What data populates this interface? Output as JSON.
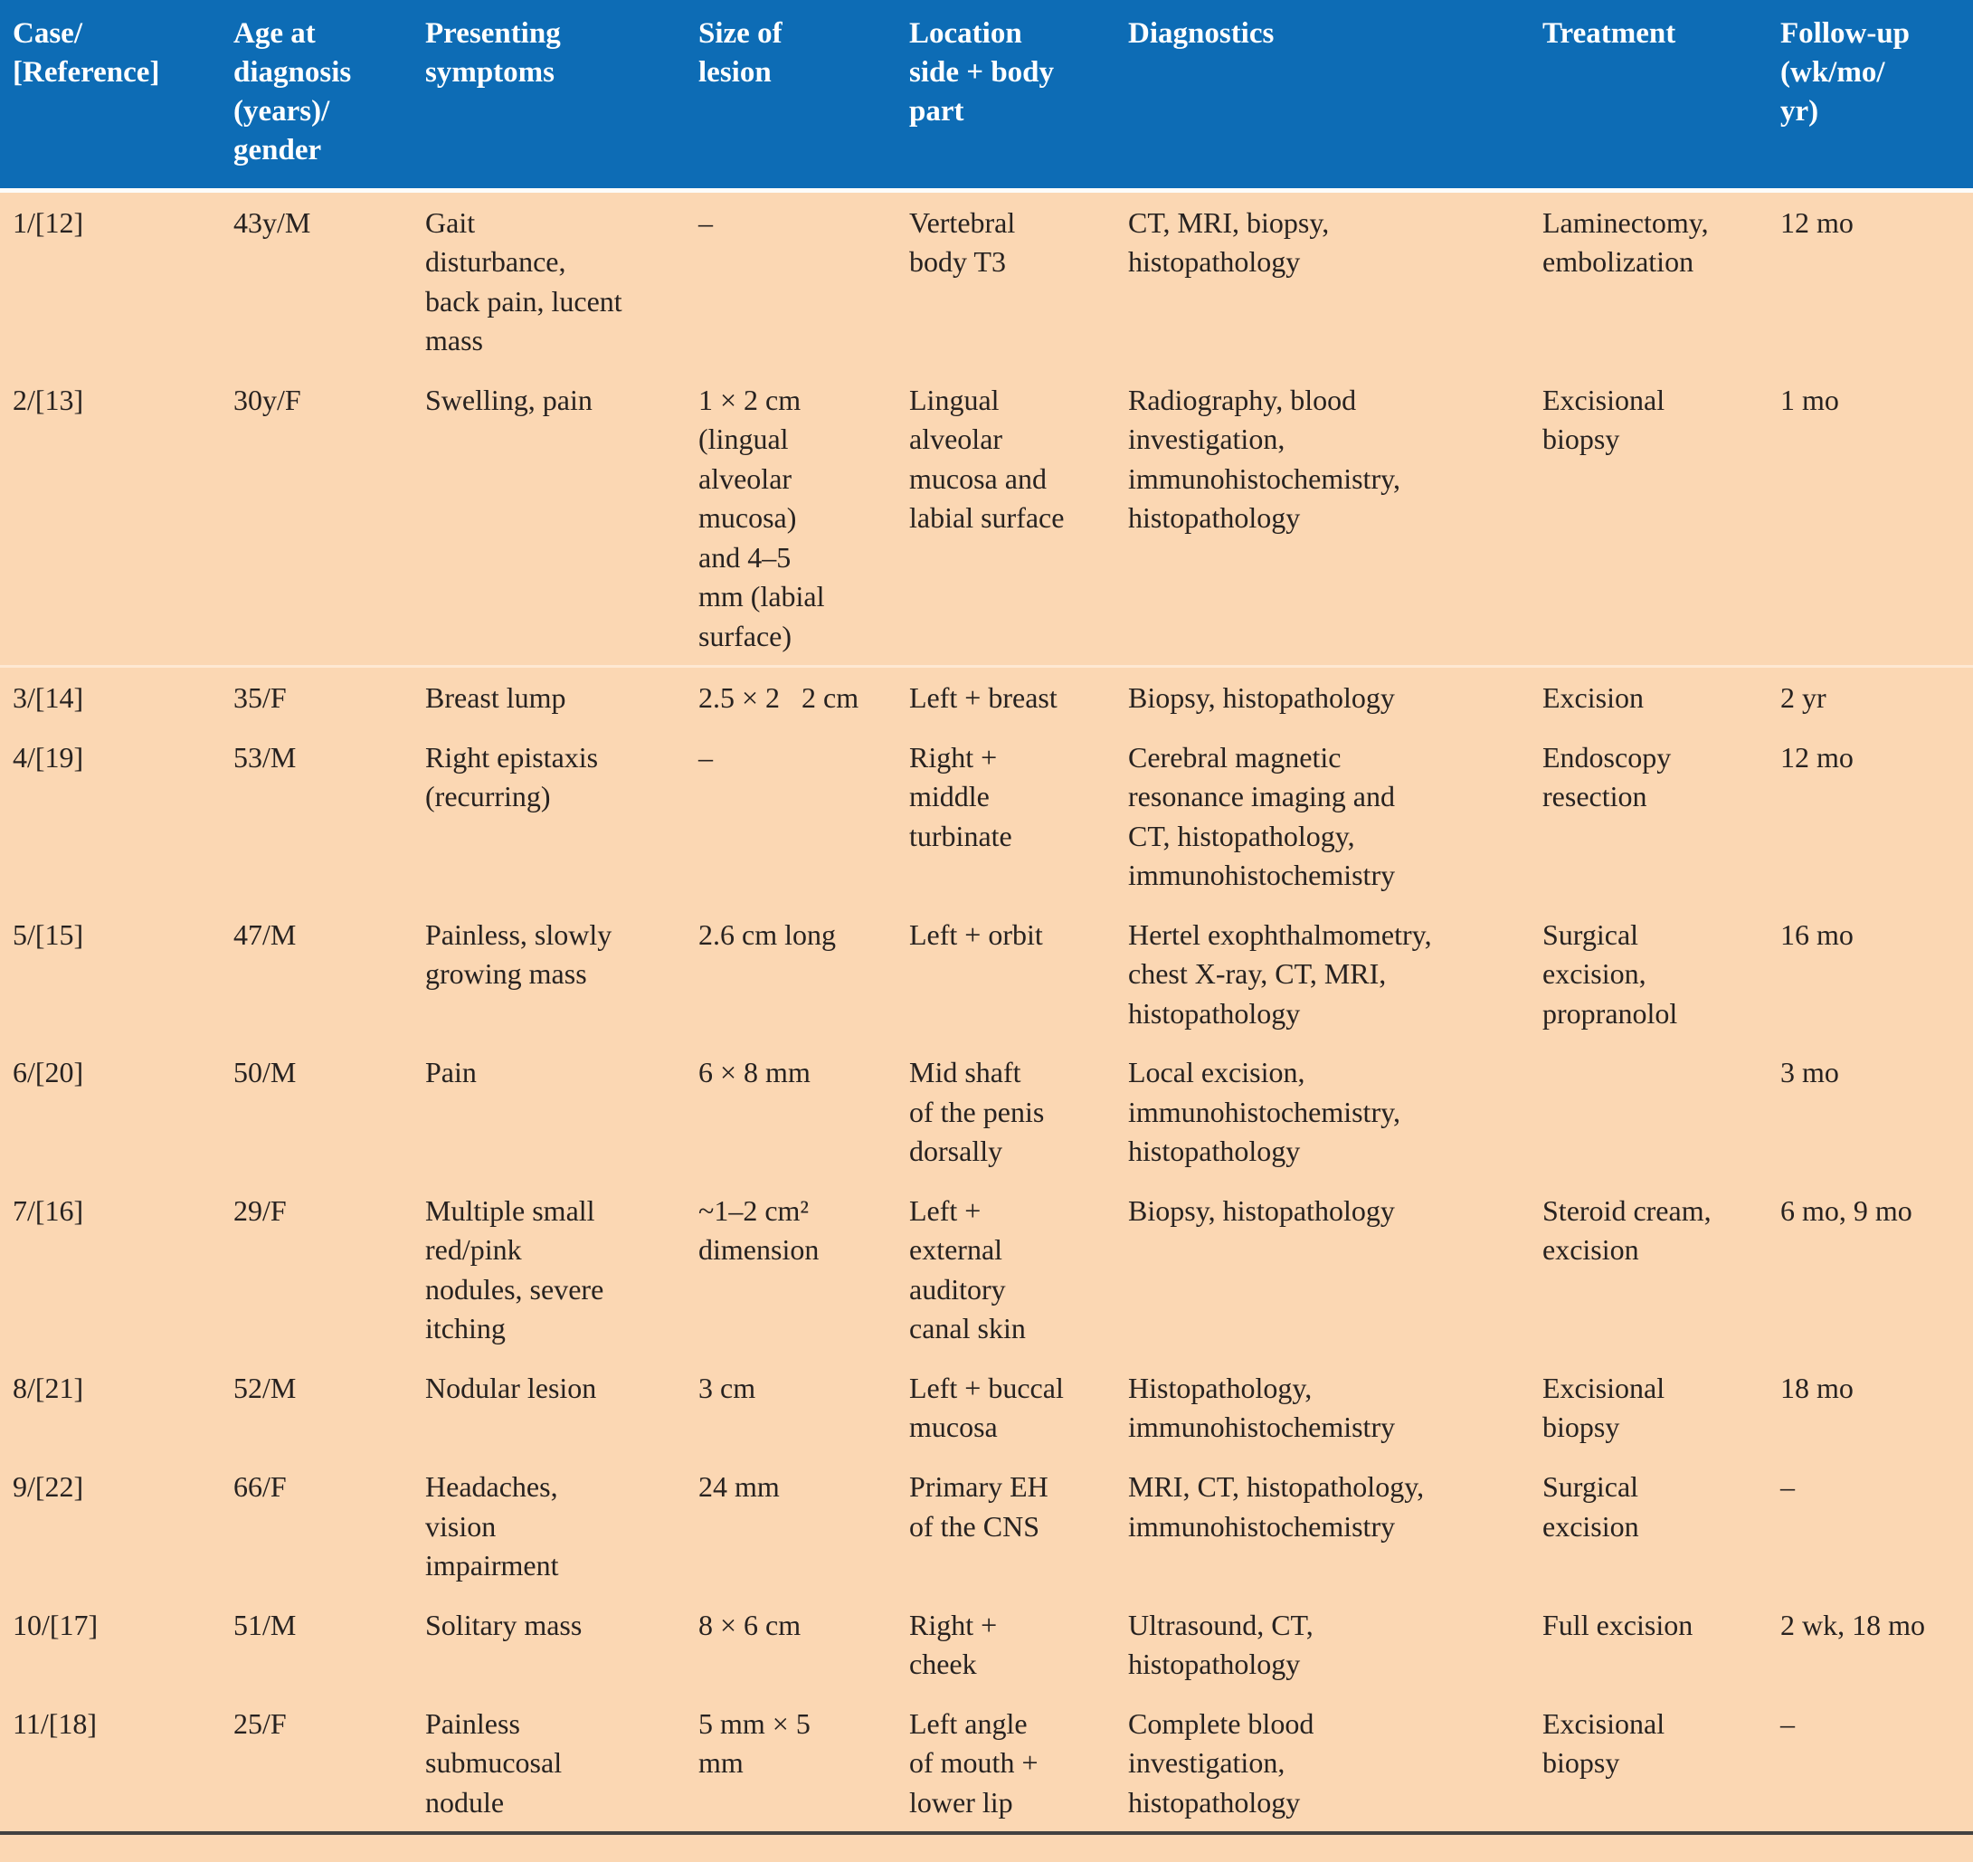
{
  "colors": {
    "header_bg": "#0d6cb5",
    "header_text": "#ffffff",
    "body_bg": "#fbd7b3",
    "body_text": "#272220",
    "bottom_rule": "#414141",
    "row_divider": "#fee8d3"
  },
  "table": {
    "headers": [
      "Case/\n[Reference]",
      "Age at\ndiagnosis\n(years)/\ngender",
      "Presenting\nsymptoms",
      "Size of\nlesion",
      "Location\nside + body\npart",
      "Diagnostics",
      "Treatment",
      "Follow-up\n(wk/mo/\nyr)"
    ],
    "rows": [
      {
        "case": "1/[12]",
        "age": "43y/M",
        "symptoms": "Gait\ndisturbance,\nback pain, lucent\nmass",
        "size": "–",
        "location": "Vertebral\nbody T3",
        "diagnostics": "CT, MRI, biopsy,\nhistopathology",
        "treatment": "Laminectomy,\nembolization",
        "followup": "12 mo"
      },
      {
        "case": "2/[13]",
        "age": "30y/F",
        "symptoms": "Swelling, pain",
        "size": "1 × 2 cm\n(lingual\nalveolar\nmucosa)\nand 4–5\nmm (labial\nsurface)",
        "location": "Lingual\nalveolar\nmucosa and\nlabial surface",
        "diagnostics": "Radiography, blood\ninvestigation,\nimmunohistochemistry,\nhistopathology",
        "treatment": "Excisional\nbiopsy",
        "followup": "1 mo"
      },
      {
        "case": "3/[14]",
        "age": "35/F",
        "symptoms": "Breast lump",
        "size": "2.5 × 2  2 cm",
        "location": "Left + breast",
        "diagnostics": "Biopsy, histopathology",
        "treatment": "Excision",
        "followup": "2 yr"
      },
      {
        "case": "4/[19]",
        "age": "53/M",
        "symptoms": "Right epistaxis\n(recurring)",
        "size": "–",
        "location": "Right +\nmiddle\nturbinate",
        "diagnostics": "Cerebral magnetic\nresonance imaging and\nCT, histopathology,\nimmunohistochemistry",
        "treatment": "Endoscopy\nresection",
        "followup": "12 mo"
      },
      {
        "case": "5/[15]",
        "age": "47/M",
        "symptoms": "Painless, slowly\ngrowing mass",
        "size": "2.6 cm long",
        "location": "Left + orbit",
        "diagnostics": "Hertel exophthalmometry,\nchest X-ray, CT, MRI,\nhistopathology",
        "treatment": "Surgical\nexcision,\npropranolol",
        "followup": "16 mo"
      },
      {
        "case": "6/[20]",
        "age": "50/M",
        "symptoms": "Pain",
        "size": "6 × 8 mm",
        "location": "Mid shaft\nof the penis\ndorsally",
        "diagnostics": "Local excision,\nimmunohistochemistry,\nhistopathology",
        "treatment": "",
        "followup": "3 mo"
      },
      {
        "case": "7/[16]",
        "age": "29/F",
        "symptoms": "Multiple small\nred/pink\nnodules, severe\nitching",
        "size": "~1–2 cm²\ndimension",
        "location": "Left +\nexternal\nauditory\ncanal skin",
        "diagnostics": "Biopsy, histopathology",
        "treatment": "Steroid cream,\nexcision",
        "followup": "6 mo, 9 mo"
      },
      {
        "case": "8/[21]",
        "age": "52/M",
        "symptoms": "Nodular lesion",
        "size": "3 cm",
        "location": "Left + buccal\nmucosa",
        "diagnostics": "Histopathology,\nimmunohistochemistry",
        "treatment": "Excisional\nbiopsy",
        "followup": "18 mo"
      },
      {
        "case": "9/[22]",
        "age": "66/F",
        "symptoms": "Headaches,\nvision\nimpairment",
        "size": "24 mm",
        "location": "Primary EH\nof the CNS",
        "diagnostics": "MRI, CT, histopathology,\nimmunohistochemistry",
        "treatment": "Surgical\nexcision",
        "followup": "–"
      },
      {
        "case": "10/[17]",
        "age": "51/M",
        "symptoms": "Solitary mass",
        "size": "8 × 6 cm",
        "location": "Right +\ncheek",
        "diagnostics": "Ultrasound, CT,\nhistopathology",
        "treatment": "Full excision",
        "followup": "2 wk, 18 mo"
      },
      {
        "case": "11/[18]",
        "age": "25/F",
        "symptoms": "Painless\nsubmucosal\nnodule",
        "size": "5 mm × 5\nmm",
        "location": "Left angle\nof mouth +\nlower lip",
        "diagnostics": "Complete blood\ninvestigation,\nhistopathology",
        "treatment": "Excisional\nbiopsy",
        "followup": "–"
      }
    ]
  }
}
